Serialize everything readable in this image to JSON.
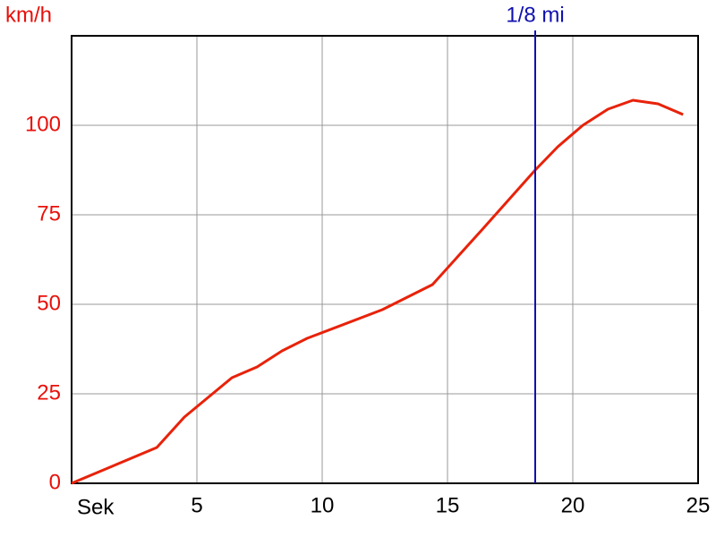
{
  "chart_data": {
    "type": "line",
    "y_label": "km/h",
    "x_label": "Sek",
    "x": [
      0,
      3.4,
      4.5,
      6.4,
      7.4,
      8.4,
      9.4,
      12.4,
      13.4,
      14.4,
      16.4,
      18.5,
      19.4,
      20.4,
      21.4,
      22.4,
      23.4,
      24.4
    ],
    "series": [
      {
        "name": "km/h",
        "color": "#e8220a",
        "values": [
          0,
          10,
          18.5,
          29.5,
          32.5,
          37,
          40.5,
          48.5,
          52,
          55.5,
          71,
          87.5,
          94,
          100,
          104.5,
          107,
          106,
          103
        ]
      }
    ],
    "xlim": [
      0,
      25
    ],
    "xticks": [
      5,
      10,
      15,
      20,
      25
    ],
    "ylim": [
      0,
      125
    ],
    "yticks": [
      0,
      25,
      50,
      75,
      100
    ],
    "grid": true,
    "axis_label_color": "#e8100a",
    "grid_color": "#999999",
    "marker": {
      "x": 18.5,
      "label": "1/8 mi",
      "color": "#1010b0"
    }
  }
}
